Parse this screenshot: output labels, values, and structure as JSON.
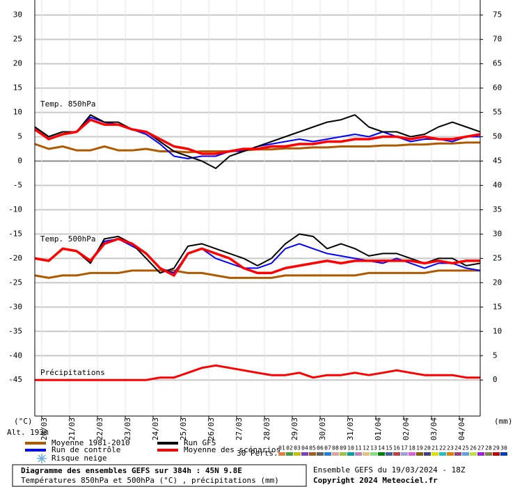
{
  "chart_data": {
    "type": "line",
    "ylabel": "(°C)",
    "y2label": "(mm)",
    "altitude": "Alt. 193m",
    "annotations": [
      "Temp. 850hPa",
      "Temp. 500hPa",
      "Précipitations"
    ],
    "xlim": [
      0,
      384
    ],
    "xticks": [
      {
        "value": 6,
        "label": "20/03"
      },
      {
        "value": 30,
        "label": "21/03"
      },
      {
        "value": 54,
        "label": "22/03"
      },
      {
        "value": 78,
        "label": "23/03"
      },
      {
        "value": 102,
        "label": "24/03"
      },
      {
        "value": 126,
        "label": "25/03"
      },
      {
        "value": 150,
        "label": "26/03"
      },
      {
        "value": 174,
        "label": "27/03"
      },
      {
        "value": 198,
        "label": "28/03"
      },
      {
        "value": 222,
        "label": "29/03"
      },
      {
        "value": 246,
        "label": "30/03"
      },
      {
        "value": 270,
        "label": "31/03"
      },
      {
        "value": 294,
        "label": "01/04"
      },
      {
        "value": 318,
        "label": "02/04"
      },
      {
        "value": 342,
        "label": "03/04"
      },
      {
        "value": 366,
        "label": "04/04"
      }
    ],
    "ylim": [
      -52.4,
      33.1
    ],
    "yticks": [
      30,
      25,
      20,
      15,
      10,
      5,
      0,
      -5,
      -10,
      -15,
      -20,
      -25,
      -30,
      -35,
      -40,
      -45
    ],
    "y2lim": [
      -7.4,
      78.1
    ],
    "y2ticks": [
      75,
      70,
      65,
      60,
      55,
      50,
      45,
      40,
      35,
      30,
      25,
      20,
      15,
      10,
      5,
      0
    ],
    "grid": true,
    "x": [
      0,
      12,
      24,
      36,
      48,
      60,
      72,
      84,
      96,
      108,
      120,
      132,
      144,
      156,
      168,
      180,
      192,
      204,
      216,
      228,
      240,
      252,
      264,
      276,
      288,
      300,
      312,
      324,
      336,
      348,
      360,
      372,
      384
    ],
    "series": [
      {
        "name": "Moyenne 1981-2010",
        "color": "#b05a00",
        "width": 3,
        "values": [
          3.5,
          2.5,
          3,
          2.2,
          2.2,
          3,
          2.2,
          2.2,
          2.5,
          2,
          2,
          1.8,
          2,
          2,
          2,
          2.2,
          2.4,
          2.4,
          2.6,
          2.6,
          2.8,
          2.8,
          3,
          3,
          3,
          3.2,
          3.2,
          3.4,
          3.4,
          3.6,
          3.6,
          3.8,
          3.8
        ]
      },
      {
        "name": "Run de contrôle",
        "color": "#0000ff",
        "width": 2,
        "values": [
          7,
          5,
          6,
          6,
          9,
          8,
          7.5,
          6.5,
          5.5,
          3.5,
          1,
          0.5,
          1,
          1,
          2,
          2,
          3,
          3.5,
          4,
          4.5,
          4,
          4.5,
          5,
          5.5,
          5,
          6,
          5,
          4,
          4.5,
          4.5,
          4,
          5,
          5
        ]
      },
      {
        "name": "Run GFS",
        "color": "#000000",
        "width": 2,
        "values": [
          7,
          5,
          6,
          6,
          9.5,
          8,
          8,
          6.5,
          6,
          4,
          2,
          1,
          0,
          -1.5,
          1,
          2,
          3,
          4,
          5,
          6,
          7,
          8,
          8.5,
          9.5,
          7,
          6,
          6,
          5,
          5.5,
          7,
          8,
          7,
          6
        ]
      },
      {
        "name": "Moyenne des scénarios",
        "color": "#ff0000",
        "width": 3.5,
        "values": [
          6.5,
          4.5,
          5.5,
          6,
          8.5,
          7.5,
          7.5,
          6.5,
          6,
          4.5,
          3,
          2.5,
          1.5,
          1.5,
          2,
          2.5,
          2.5,
          3,
          3,
          3.5,
          3.5,
          4,
          4,
          4.5,
          4.5,
          5,
          5,
          4.5,
          5,
          4.5,
          4.5,
          5,
          5.5
        ]
      },
      {
        "name": "Moyenne 1981-2010",
        "color": "#b05a00",
        "width": 3,
        "values": [
          -23.5,
          -24,
          -23.5,
          -23.5,
          -23,
          -23,
          -23,
          -22.5,
          -22.5,
          -22.5,
          -22.5,
          -23,
          -23,
          -23.5,
          -24,
          -24,
          -24,
          -24,
          -23.5,
          -23.5,
          -23.5,
          -23.5,
          -23.5,
          -23.5,
          -23,
          -23,
          -23,
          -23,
          -23,
          -22.5,
          -22.5,
          -22.5,
          -22.5
        ]
      },
      {
        "name": "Run de contrôle",
        "color": "#0000ff",
        "width": 2,
        "values": [
          -20,
          -20.5,
          -18,
          -18.5,
          -20.5,
          -16.5,
          -16,
          -17.5,
          -19,
          -22,
          -23,
          -19,
          -18,
          -20,
          -21,
          -22,
          -22,
          -21,
          -18,
          -17,
          -18,
          -19,
          -19.5,
          -20,
          -20.5,
          -21,
          -20,
          -21,
          -22,
          -21,
          -21,
          -22,
          -22.5
        ]
      },
      {
        "name": "Run GFS",
        "color": "#000000",
        "width": 2,
        "values": [
          -20,
          -20.5,
          -18,
          -18.5,
          -21,
          -16,
          -15.5,
          -17,
          -20,
          -23,
          -22,
          -17.5,
          -17,
          -18,
          -19,
          -20,
          -21.5,
          -20,
          -17,
          -15,
          -15.5,
          -18,
          -17,
          -18,
          -19.5,
          -19,
          -19,
          -20,
          -21,
          -20,
          -20,
          -21.5,
          -21
        ]
      },
      {
        "name": "Moyenne des scénarios",
        "color": "#ff0000",
        "width": 3.5,
        "values": [
          -20,
          -20.5,
          -18,
          -18.5,
          -20.5,
          -17,
          -16,
          -17,
          -19,
          -22,
          -23.5,
          -19,
          -18,
          -19,
          -20,
          -22,
          -23,
          -23,
          -22,
          -21.5,
          -21,
          -20.5,
          -21,
          -20.5,
          -20.5,
          -20.5,
          -20.5,
          -20.5,
          -21,
          -20.5,
          -21,
          -20.5,
          -20.5
        ]
      },
      {
        "name": "Moyenne des scénarios",
        "color": "#ff0000",
        "width": 3,
        "axis": "y2",
        "values": [
          0,
          0,
          0,
          0,
          0,
          0,
          0,
          0,
          0,
          0.5,
          0.5,
          1.5,
          2.5,
          3,
          2.5,
          2,
          1.5,
          1,
          1,
          1.5,
          0.5,
          1,
          1,
          1.5,
          1,
          1.5,
          2,
          1.5,
          1,
          1,
          1,
          0.5,
          0.5
        ]
      }
    ],
    "snow_label": "Risque neige",
    "perturbations_label": "30 Perts.",
    "perturbations": [
      {
        "label": "01",
        "color": "#e08040"
      },
      {
        "label": "02",
        "color": "#40a040"
      },
      {
        "label": "03",
        "color": "#c0c000"
      },
      {
        "label": "04",
        "color": "#8040c0"
      },
      {
        "label": "05",
        "color": "#a06020"
      },
      {
        "label": "06",
        "color": "#606060"
      },
      {
        "label": "07",
        "color": "#2080e0"
      },
      {
        "label": "08",
        "color": "#e0a0a0"
      },
      {
        "label": "09",
        "color": "#a0c040"
      },
      {
        "label": "10",
        "color": "#00a0a0"
      },
      {
        "label": "11",
        "color": "#c080c0"
      },
      {
        "label": "12",
        "color": "#e0c080"
      },
      {
        "label": "13",
        "color": "#80e080"
      },
      {
        "label": "14",
        "color": "#008000"
      },
      {
        "label": "15",
        "color": "#4060a0"
      },
      {
        "label": "16",
        "color": "#c04040"
      },
      {
        "label": "17",
        "color": "#a0a0e0"
      },
      {
        "label": "18",
        "color": "#e060e0"
      },
      {
        "label": "19",
        "color": "#806000"
      },
      {
        "label": "20",
        "color": "#404080"
      },
      {
        "label": "21",
        "color": "#e0e000"
      },
      {
        "label": "22",
        "color": "#20c0c0"
      },
      {
        "label": "23",
        "color": "#e08000"
      },
      {
        "label": "24",
        "color": "#a04080"
      },
      {
        "label": "25",
        "color": "#60a0e0"
      },
      {
        "label": "26",
        "color": "#c0e040"
      },
      {
        "label": "27",
        "color": "#a020e0"
      },
      {
        "label": "28",
        "color": "#808040"
      },
      {
        "label": "29",
        "color": "#c00000"
      },
      {
        "label": "30",
        "color": "#0040c0"
      }
    ],
    "footer": {
      "title": "Diagramme des ensembles GEFS sur 384h : 45N 9.8E",
      "subtitle": "Températures 850hPa et 500hPa (°C) , précipitations (mm)",
      "run": "Ensemble GEFS du 19/03/2024 - 18Z",
      "copyright": "Copyright 2024 Meteociel.fr"
    }
  }
}
